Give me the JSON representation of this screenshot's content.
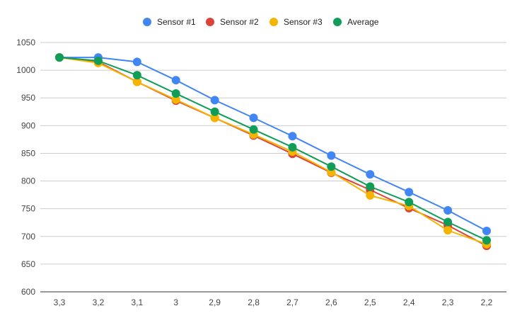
{
  "chart_data": {
    "type": "line",
    "title": "",
    "xlabel": "",
    "ylabel": "",
    "categories": [
      "3,3",
      "3,2",
      "3,1",
      "3",
      "2,9",
      "2,8",
      "2,7",
      "2,6",
      "2,5",
      "2,4",
      "2,3",
      "2,2"
    ],
    "ylim": [
      600,
      1050
    ],
    "yticks": [
      600,
      650,
      700,
      750,
      800,
      850,
      900,
      950,
      1000,
      1050
    ],
    "grid": true,
    "legend_position": "top-center",
    "series": [
      {
        "name": "Sensor #1",
        "color": "#4285F4",
        "values": [
          1023,
          1023,
          1015,
          982,
          946,
          914,
          881,
          846,
          812,
          780,
          747,
          710
        ]
      },
      {
        "name": "Sensor #2",
        "color": "#DB4437",
        "values": [
          1023,
          1015,
          979,
          945,
          914,
          882,
          849,
          815,
          784,
          751,
          720,
          683
        ]
      },
      {
        "name": "Sensor #3",
        "color": "#F4B400",
        "values": [
          1023,
          1013,
          979,
          947,
          914,
          884,
          853,
          816,
          774,
          755,
          711,
          686
        ]
      },
      {
        "name": "Average",
        "color": "#0F9D58",
        "values": [
          1023,
          1017,
          991,
          958,
          925,
          893,
          861,
          826,
          790,
          762,
          726,
          693
        ]
      }
    ]
  }
}
